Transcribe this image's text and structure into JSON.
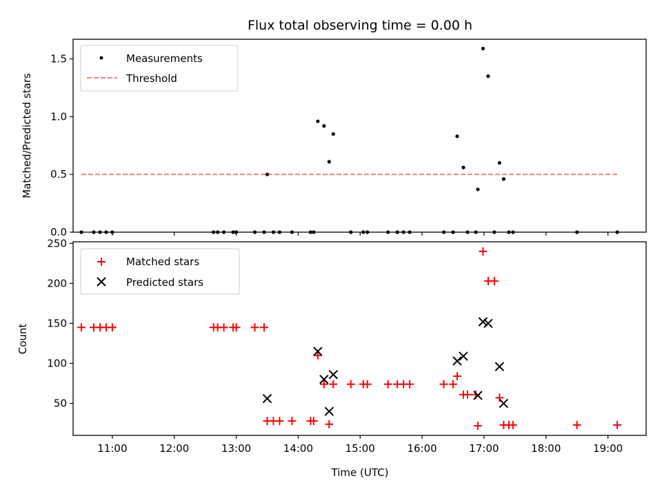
{
  "chart_data": [
    {
      "type": "scatter",
      "title": "Flux total observing time = 0.00 h",
      "xlabel": "",
      "ylabel": "Matched/Predicted stars",
      "xlim": [
        "10:22",
        "19:37"
      ],
      "ylim": [
        0,
        1.67
      ],
      "yticks": [
        0.0,
        0.5,
        1.0,
        1.5
      ],
      "ytick_labels": [
        "0.0",
        "0.5",
        "1.0",
        "1.5"
      ],
      "legend_placement": "upper-left",
      "grid": false,
      "threshold": {
        "name": "Threshold",
        "value": 0.5,
        "x_range": [
          "10:30",
          "19:10"
        ],
        "color": "#f08080",
        "style": "dashed"
      },
      "series": [
        {
          "name": "Measurements",
          "marker": "dot",
          "color": "#000000",
          "points": [
            [
              "10:30",
              0
            ],
            [
              "10:42",
              0
            ],
            [
              "10:48",
              0
            ],
            [
              "10:54",
              0
            ],
            [
              "11:00",
              0
            ],
            [
              "12:38",
              0
            ],
            [
              "12:42",
              0
            ],
            [
              "12:48",
              0
            ],
            [
              "12:57",
              0
            ],
            [
              "13:00",
              0
            ],
            [
              "13:18",
              0
            ],
            [
              "13:27",
              0
            ],
            [
              "13:30",
              0.5
            ],
            [
              "13:36",
              0
            ],
            [
              "13:42",
              0
            ],
            [
              "13:54",
              0
            ],
            [
              "14:12",
              0
            ],
            [
              "14:15",
              0
            ],
            [
              "14:19",
              0.96
            ],
            [
              "14:25",
              0.92
            ],
            [
              "14:30",
              0.61
            ],
            [
              "14:34",
              0.85
            ],
            [
              "14:51",
              0
            ],
            [
              "15:03",
              0
            ],
            [
              "15:07",
              0
            ],
            [
              "15:27",
              0
            ],
            [
              "15:36",
              0
            ],
            [
              "15:42",
              0
            ],
            [
              "15:48",
              0
            ],
            [
              "16:21",
              0
            ],
            [
              "16:30",
              0
            ],
            [
              "16:34",
              0.83
            ],
            [
              "16:40",
              0.56
            ],
            [
              "16:44",
              0
            ],
            [
              "16:52",
              0
            ],
            [
              "16:54",
              0.37
            ],
            [
              "16:59",
              1.59
            ],
            [
              "17:04",
              1.35
            ],
            [
              "17:10",
              0
            ],
            [
              "17:15",
              0.6
            ],
            [
              "17:19",
              0.46
            ],
            [
              "17:24",
              0
            ],
            [
              "17:28",
              0
            ],
            [
              "18:30",
              0
            ],
            [
              "19:09",
              0
            ]
          ]
        }
      ]
    },
    {
      "type": "scatter",
      "title": "",
      "xlabel": "Time (UTC)",
      "ylabel": "Count",
      "xlim": [
        "10:22",
        "19:37"
      ],
      "ylim": [
        10,
        252
      ],
      "yticks": [
        50,
        100,
        150,
        200,
        250
      ],
      "ytick_labels": [
        "50",
        "100",
        "150",
        "200",
        "250"
      ],
      "xticks": [
        "11:00",
        "12:00",
        "13:00",
        "14:00",
        "15:00",
        "16:00",
        "17:00",
        "18:00",
        "19:00"
      ],
      "xtick_labels": [
        "11:00",
        "12:00",
        "13:00",
        "14:00",
        "15:00",
        "16:00",
        "17:00",
        "18:00",
        "19:00"
      ],
      "legend_placement": "upper-left",
      "grid": false,
      "series": [
        {
          "name": "Matched stars",
          "marker": "plus",
          "color": "#ff0000",
          "points": [
            [
              "10:30",
              145
            ],
            [
              "10:42",
              145
            ],
            [
              "10:48",
              145
            ],
            [
              "10:54",
              145
            ],
            [
              "11:00",
              145
            ],
            [
              "12:38",
              145
            ],
            [
              "12:42",
              145
            ],
            [
              "12:48",
              145
            ],
            [
              "12:57",
              145
            ],
            [
              "13:00",
              145
            ],
            [
              "13:18",
              145
            ],
            [
              "13:27",
              145
            ],
            [
              "13:30",
              28
            ],
            [
              "13:36",
              28
            ],
            [
              "13:42",
              28
            ],
            [
              "13:54",
              28
            ],
            [
              "14:12",
              28
            ],
            [
              "14:15",
              28
            ],
            [
              "14:19",
              110
            ],
            [
              "14:25",
              74
            ],
            [
              "14:30",
              24
            ],
            [
              "14:34",
              74
            ],
            [
              "14:51",
              74
            ],
            [
              "15:03",
              74
            ],
            [
              "15:07",
              74
            ],
            [
              "15:27",
              74
            ],
            [
              "15:36",
              74
            ],
            [
              "15:42",
              74
            ],
            [
              "15:48",
              74
            ],
            [
              "16:21",
              74
            ],
            [
              "16:30",
              74
            ],
            [
              "16:34",
              84
            ],
            [
              "16:40",
              61
            ],
            [
              "16:44",
              61
            ],
            [
              "16:52",
              61
            ],
            [
              "16:54",
              22
            ],
            [
              "16:59",
              240
            ],
            [
              "17:04",
              203
            ],
            [
              "17:10",
              203
            ],
            [
              "17:15",
              57
            ],
            [
              "17:19",
              23
            ],
            [
              "17:24",
              23
            ],
            [
              "17:28",
              23
            ],
            [
              "18:30",
              23
            ],
            [
              "19:09",
              23
            ]
          ]
        },
        {
          "name": "Predicted stars",
          "marker": "x",
          "color": "#000000",
          "points": [
            [
              "13:30",
              56
            ],
            [
              "14:19",
              115
            ],
            [
              "14:25",
              80
            ],
            [
              "14:30",
              40
            ],
            [
              "14:34",
              86
            ],
            [
              "16:34",
              103
            ],
            [
              "16:40",
              109
            ],
            [
              "16:54",
              60
            ],
            [
              "16:59",
              152
            ],
            [
              "17:04",
              150
            ],
            [
              "17:15",
              96
            ],
            [
              "17:19",
              50
            ]
          ]
        }
      ]
    }
  ]
}
